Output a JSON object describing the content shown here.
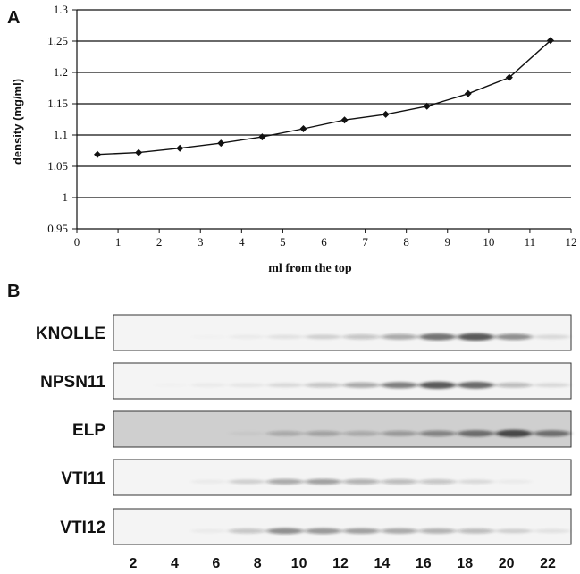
{
  "panels": {
    "a": "A",
    "b": "B"
  },
  "chart_data": {
    "type": "line",
    "title": "",
    "xlabel": "ml from the top",
    "ylabel": "density (mg/ml)",
    "xlim": [
      0,
      12
    ],
    "ylim": [
      0.95,
      1.3
    ],
    "x_ticks": [
      0,
      1,
      2,
      3,
      4,
      5,
      6,
      7,
      8,
      9,
      10,
      11,
      12
    ],
    "y_ticks": [
      0.95,
      1,
      1.05,
      1.1,
      1.15,
      1.2,
      1.25,
      1.3
    ],
    "y_tick_labels": [
      "0.95",
      "1",
      "1.05",
      "1.1",
      "1.15",
      "1.2",
      "1.25",
      "1.3"
    ],
    "grid": "horizontal",
    "series": [
      {
        "x": [
          0.5,
          1.5,
          2.5,
          3.5,
          4.5,
          5.5,
          6.5,
          7.5,
          8.5,
          9.5,
          10.5,
          11.5
        ],
        "values": [
          1.069,
          1.072,
          1.079,
          1.087,
          1.097,
          1.11,
          1.124,
          1.133,
          1.146,
          1.166,
          1.192,
          1.251
        ]
      }
    ],
    "color": "#111111"
  },
  "blot": {
    "rows": [
      {
        "label": "KNOLLE",
        "background": "#f4f4f4",
        "bands": [
          0.0,
          0.0,
          0.02,
          0.05,
          0.1,
          0.2,
          0.3,
          0.45,
          0.8,
          0.95,
          0.6,
          0.15
        ]
      },
      {
        "label": "NPSN11",
        "background": "#f4f4f4",
        "bands": [
          0.0,
          0.02,
          0.05,
          0.08,
          0.15,
          0.3,
          0.45,
          0.7,
          0.95,
          0.85,
          0.35,
          0.15
        ]
      },
      {
        "label": "ELP",
        "background": "#cfcfcf",
        "bands": [
          0.0,
          0.0,
          0.0,
          0.05,
          0.3,
          0.35,
          0.3,
          0.4,
          0.55,
          0.75,
          1.0,
          0.7
        ]
      },
      {
        "label": "VTI11",
        "background": "#f4f4f4",
        "bands": [
          0.0,
          0.0,
          0.05,
          0.2,
          0.45,
          0.5,
          0.4,
          0.35,
          0.3,
          0.15,
          0.05,
          0.0
        ]
      },
      {
        "label": "VTI12",
        "background": "#f4f4f4",
        "bands": [
          0.0,
          0.0,
          0.05,
          0.3,
          0.6,
          0.55,
          0.5,
          0.45,
          0.4,
          0.35,
          0.2,
          0.1
        ]
      }
    ],
    "lanes": [
      "2",
      "4",
      "6",
      "8",
      "10",
      "12",
      "14",
      "16",
      "18",
      "20",
      "22"
    ]
  }
}
